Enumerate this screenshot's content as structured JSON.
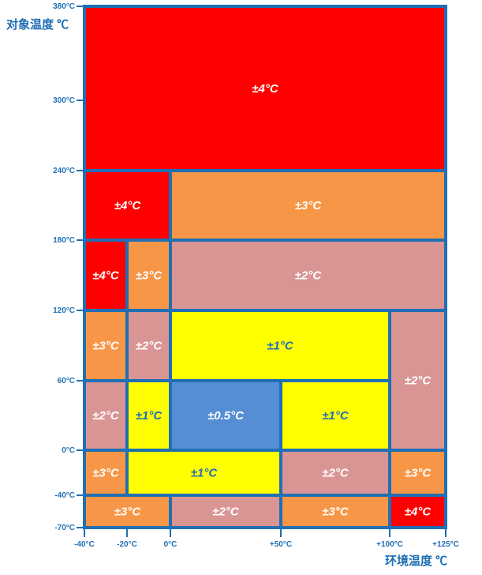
{
  "axes": {
    "y_title": "对象温度 ℃",
    "x_title": "环境温度 ℃",
    "y_ticks": [
      "380°C",
      "300°C",
      "240°C",
      "180°C",
      "120°C",
      "60°C",
      "0°C",
      "-40°C",
      "-70°C"
    ],
    "x_ticks": [
      "-40°C",
      "-20°C",
      "0°C",
      "+50°C",
      "+100°C",
      "+125°C"
    ]
  },
  "colors": {
    "red": "#ff0000",
    "orange": "#f79646",
    "pink": "#d99594",
    "yellow": "#ffff00",
    "blue": "#558ed5",
    "grid": "#1f6fb4",
    "label_dark": "#1f6fb4",
    "label_light": "#ffffff"
  },
  "cells": [
    {
      "label": "±4°C",
      "color": "red",
      "x": [
        "-40°C",
        "+125°C"
      ],
      "y": [
        "240°C",
        "380°C"
      ]
    },
    {
      "label": "±4°C",
      "color": "red",
      "x": [
        "-40°C",
        "0°C"
      ],
      "y": [
        "180°C",
        "240°C"
      ]
    },
    {
      "label": "±3°C",
      "color": "orange",
      "x": [
        "0°C",
        "+125°C"
      ],
      "y": [
        "180°C",
        "240°C"
      ]
    },
    {
      "label": "±4°C",
      "color": "red",
      "x": [
        "-40°C",
        "-20°C"
      ],
      "y": [
        "120°C",
        "180°C"
      ]
    },
    {
      "label": "±3°C",
      "color": "orange",
      "x": [
        "-20°C",
        "0°C"
      ],
      "y": [
        "120°C",
        "180°C"
      ]
    },
    {
      "label": "±2°C",
      "color": "pink",
      "x": [
        "0°C",
        "+125°C"
      ],
      "y": [
        "120°C",
        "180°C"
      ]
    },
    {
      "label": "±3°C",
      "color": "orange",
      "x": [
        "-40°C",
        "-20°C"
      ],
      "y": [
        "60°C",
        "120°C"
      ]
    },
    {
      "label": "±2°C",
      "color": "pink",
      "x": [
        "-20°C",
        "0°C"
      ],
      "y": [
        "60°C",
        "120°C"
      ]
    },
    {
      "label": "±1°C",
      "color": "yellow",
      "x": [
        "0°C",
        "+100°C"
      ],
      "y": [
        "60°C",
        "120°C"
      ]
    },
    {
      "label": "±2°C",
      "color": "pink",
      "x": [
        "+100°C",
        "+125°C"
      ],
      "y": [
        "0°C",
        "120°C"
      ]
    },
    {
      "label": "±2°C",
      "color": "pink",
      "x": [
        "-40°C",
        "-20°C"
      ],
      "y": [
        "0°C",
        "60°C"
      ]
    },
    {
      "label": "±1°C",
      "color": "yellow",
      "x": [
        "-20°C",
        "0°C"
      ],
      "y": [
        "0°C",
        "60°C"
      ]
    },
    {
      "label": "±0.5°C",
      "color": "blue",
      "x": [
        "0°C",
        "+50°C"
      ],
      "y": [
        "0°C",
        "60°C"
      ]
    },
    {
      "label": "±1°C",
      "color": "yellow",
      "x": [
        "+50°C",
        "+100°C"
      ],
      "y": [
        "0°C",
        "60°C"
      ]
    },
    {
      "label": "±3°C",
      "color": "orange",
      "x": [
        "-40°C",
        "-20°C"
      ],
      "y": [
        "-40°C",
        "0°C"
      ]
    },
    {
      "label": "±1°C",
      "color": "yellow",
      "x": [
        "-20°C",
        "+50°C"
      ],
      "y": [
        "-40°C",
        "0°C"
      ]
    },
    {
      "label": "±2°C",
      "color": "pink",
      "x": [
        "+50°C",
        "+100°C"
      ],
      "y": [
        "-40°C",
        "0°C"
      ]
    },
    {
      "label": "±3°C",
      "color": "orange",
      "x": [
        "+100°C",
        "+125°C"
      ],
      "y": [
        "-40°C",
        "0°C"
      ]
    },
    {
      "label": "±3°C",
      "color": "orange",
      "x": [
        "-40°C",
        "0°C"
      ],
      "y": [
        "-70°C",
        "-40°C"
      ]
    },
    {
      "label": "±2°C",
      "color": "pink",
      "x": [
        "0°C",
        "+50°C"
      ],
      "y": [
        "-70°C",
        "-40°C"
      ]
    },
    {
      "label": "±3°C",
      "color": "orange",
      "x": [
        "+50°C",
        "+100°C"
      ],
      "y": [
        "-70°C",
        "-40°C"
      ]
    },
    {
      "label": "±4°C",
      "color": "red",
      "x": [
        "+100°C",
        "+125°C"
      ],
      "y": [
        "-70°C",
        "-40°C"
      ]
    }
  ]
}
